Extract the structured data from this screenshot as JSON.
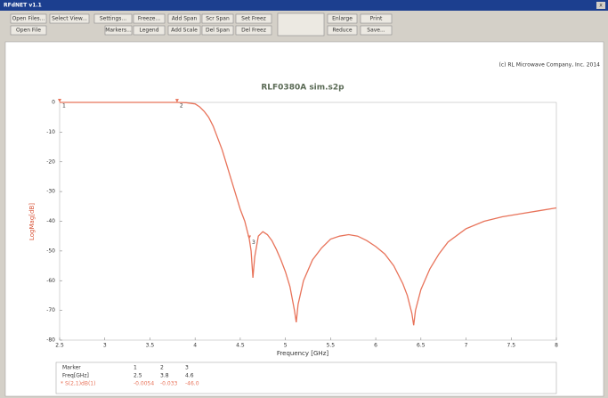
{
  "window": {
    "title": "RFdNET v1.1",
    "close": "x"
  },
  "toolbar": {
    "row1": [
      "Open Files...",
      "Select View...",
      "Settings...",
      "Freeze...",
      "Add Span",
      "Scr Span",
      "Set Freez",
      "Enlarge",
      "Print"
    ],
    "row2": [
      "Open File",
      "Markers...",
      "Legend",
      "Add Scale",
      "Del Span",
      "Del Freez",
      "Reduce",
      "Save..."
    ]
  },
  "copyright": "(c) RL Microwave Company, Inc. 2014",
  "chart_data": {
    "type": "line",
    "title": "RLF0380A sim.s2p",
    "x_label": "Frequency [GHz]",
    "y_label": "LogMag[dB]",
    "x": [
      2.5,
      3,
      3.5,
      3.8,
      3.9,
      4.0,
      4.05,
      4.1,
      4.15,
      4.2,
      4.25,
      4.3,
      4.35,
      4.4,
      4.45,
      4.5,
      4.55,
      4.6,
      4.62,
      4.64,
      4.66,
      4.7,
      4.75,
      4.8,
      4.85,
      4.9,
      4.95,
      5.0,
      5.05,
      5.1,
      5.12,
      5.14,
      5.2,
      5.3,
      5.4,
      5.5,
      5.6,
      5.7,
      5.8,
      5.9,
      6.0,
      6.1,
      6.2,
      6.3,
      6.35,
      6.4,
      6.42,
      6.44,
      6.5,
      6.6,
      6.7,
      6.8,
      7.0,
      7.2,
      7.4,
      7.6,
      7.8,
      8.0
    ],
    "series": [
      {
        "name": "S(2,1)dB(1)",
        "color": "#e8735a",
        "values": [
          0,
          0,
          0,
          0,
          -0.1,
          -0.5,
          -1.5,
          -3,
          -5,
          -8,
          -12,
          -16,
          -21,
          -26,
          -31,
          -36,
          -40,
          -46,
          -50,
          -59,
          -52,
          -45,
          -43.5,
          -44.5,
          -46.5,
          -49.5,
          -53,
          -57,
          -62,
          -70,
          -74,
          -68,
          -60,
          -53,
          -49,
          -46,
          -45,
          -44.5,
          -45,
          -46.5,
          -48.5,
          -51,
          -55,
          -61,
          -65,
          -71,
          -75,
          -70,
          -63,
          -56,
          -51,
          -47,
          -42.5,
          -40,
          -38.5,
          -37.5,
          -36.5,
          -35.5
        ]
      }
    ],
    "xlim": [
      2.5,
      8
    ],
    "xticks": [
      2.5,
      3,
      3.5,
      4,
      4.5,
      5,
      5.5,
      6,
      6.5,
      7,
      7.5,
      8
    ],
    "ylim": [
      -80,
      0
    ],
    "yticks": [
      0,
      -10,
      -20,
      -30,
      -40,
      -50,
      -60,
      -70,
      -80
    ],
    "grid": false,
    "markers": {
      "labels": [
        "1",
        "2",
        "3"
      ],
      "x": [
        2.5,
        3.8,
        4.6
      ],
      "values": [
        -0.0054,
        -0.033,
        -46.0
      ],
      "value_labels": [
        "-0.0054",
        "-0.033",
        "-46.0"
      ]
    }
  },
  "marker_table": {
    "marker_header": "Marker",
    "freq_header": "Freq[GHz]"
  }
}
